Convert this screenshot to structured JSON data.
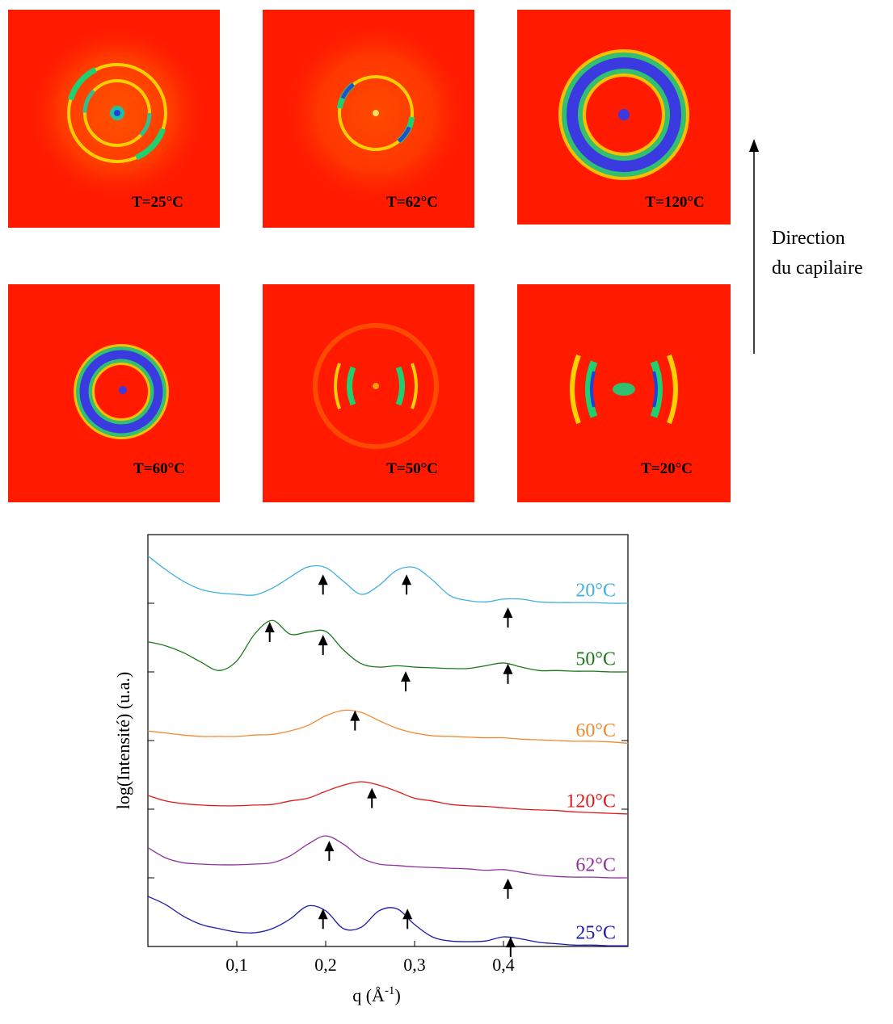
{
  "panels": [
    {
      "label": "T=25°C"
    },
    {
      "label": "T=62°C"
    },
    {
      "label": "T=120°C"
    },
    {
      "label": "T=60°C"
    },
    {
      "label": "T=50°C"
    },
    {
      "label": "T=20°C"
    }
  ],
  "direction": [
    "Direction",
    "du capilaire"
  ],
  "chart_data": {
    "type": "line",
    "ylabel": "log(Intensité) (u.a.)",
    "xlabel": {
      "text": "q (Å",
      "superscript": "-1",
      "close": ")"
    },
    "xlim": [
      0,
      0.54
    ],
    "ylim": [
      0,
      6
    ],
    "xticks": [
      {
        "value": 0.1,
        "label": "0,1"
      },
      {
        "value": 0.2,
        "label": "0,2"
      },
      {
        "value": 0.3,
        "label": "0,3"
      },
      {
        "value": 0.4,
        "label": "0,4"
      }
    ],
    "yticks": [
      1,
      2,
      3,
      4,
      5
    ],
    "x": [
      0,
      0.02,
      0.04,
      0.06,
      0.08,
      0.1,
      0.12,
      0.14,
      0.16,
      0.18,
      0.2,
      0.22,
      0.24,
      0.26,
      0.28,
      0.3,
      0.32,
      0.34,
      0.36,
      0.38,
      0.4,
      0.42,
      0.44,
      0.46,
      0.48,
      0.5,
      0.52,
      0.54
    ],
    "series": [
      {
        "name": "20°C",
        "color": "#40b0e0",
        "values": [
          5.69,
          5.49,
          5.32,
          5.2,
          5.15,
          5.13,
          5.12,
          5.22,
          5.38,
          5.53,
          5.52,
          5.32,
          5.13,
          5.26,
          5.48,
          5.52,
          5.34,
          5.11,
          5.04,
          5.02,
          5.06,
          5.06,
          5.02,
          5.01,
          5.01,
          5.01,
          5.0,
          5.0
        ]
      },
      {
        "name": "50°C",
        "color": "#1a7a1a",
        "values": [
          4.44,
          4.38,
          4.28,
          4.14,
          4.02,
          4.16,
          4.55,
          4.75,
          4.55,
          4.58,
          4.59,
          4.32,
          4.12,
          4.07,
          4.09,
          4.07,
          4.06,
          4.05,
          4.05,
          4.09,
          4.13,
          4.07,
          4.02,
          4.02,
          4.01,
          4.01,
          4.0,
          4.0
        ]
      },
      {
        "name": "60°C",
        "color": "#f08a30",
        "values": [
          3.14,
          3.11,
          3.08,
          3.06,
          3.06,
          3.06,
          3.08,
          3.09,
          3.14,
          3.22,
          3.36,
          3.44,
          3.41,
          3.29,
          3.18,
          3.11,
          3.07,
          3.06,
          3.05,
          3.04,
          3.04,
          3.02,
          3.01,
          3.0,
          2.99,
          2.99,
          2.98,
          2.96
        ]
      },
      {
        "name": "120°C",
        "color": "#e01a1a",
        "values": [
          2.2,
          2.12,
          2.08,
          2.06,
          2.05,
          2.05,
          2.06,
          2.07,
          2.12,
          2.16,
          2.26,
          2.35,
          2.4,
          2.35,
          2.26,
          2.16,
          2.12,
          2.07,
          2.05,
          2.04,
          2.02,
          2.0,
          1.99,
          1.98,
          1.96,
          1.95,
          1.94,
          1.93
        ]
      },
      {
        "name": "62°C",
        "color": "#9030a0",
        "values": [
          1.44,
          1.29,
          1.22,
          1.2,
          1.19,
          1.19,
          1.2,
          1.22,
          1.32,
          1.49,
          1.61,
          1.49,
          1.29,
          1.2,
          1.18,
          1.16,
          1.15,
          1.14,
          1.13,
          1.11,
          1.12,
          1.08,
          1.04,
          1.02,
          1.01,
          1.01,
          1.0,
          1.0
        ]
      },
      {
        "name": "25°C",
        "color": "#1a1ab0",
        "values": [
          0.73,
          0.61,
          0.44,
          0.32,
          0.26,
          0.21,
          0.2,
          0.26,
          0.4,
          0.59,
          0.52,
          0.26,
          0.28,
          0.52,
          0.55,
          0.32,
          0.14,
          0.08,
          0.07,
          0.08,
          0.14,
          0.11,
          0.06,
          0.04,
          0.02,
          0.02,
          0.01,
          0.01
        ]
      }
    ],
    "arrows": {
      "x": [
        0.197,
        0.291,
        0.405,
        0.137,
        0.197,
        0.29,
        0.405,
        0.233,
        0.252,
        0.204,
        0.405,
        0.197,
        0.292,
        0.408
      ],
      "y": [
        5.42,
        5.42,
        4.94,
        4.73,
        4.54,
        4.01,
        4.12,
        3.44,
        2.31,
        1.54,
        0.99,
        0.55,
        0.55,
        0.14
      ]
    }
  }
}
